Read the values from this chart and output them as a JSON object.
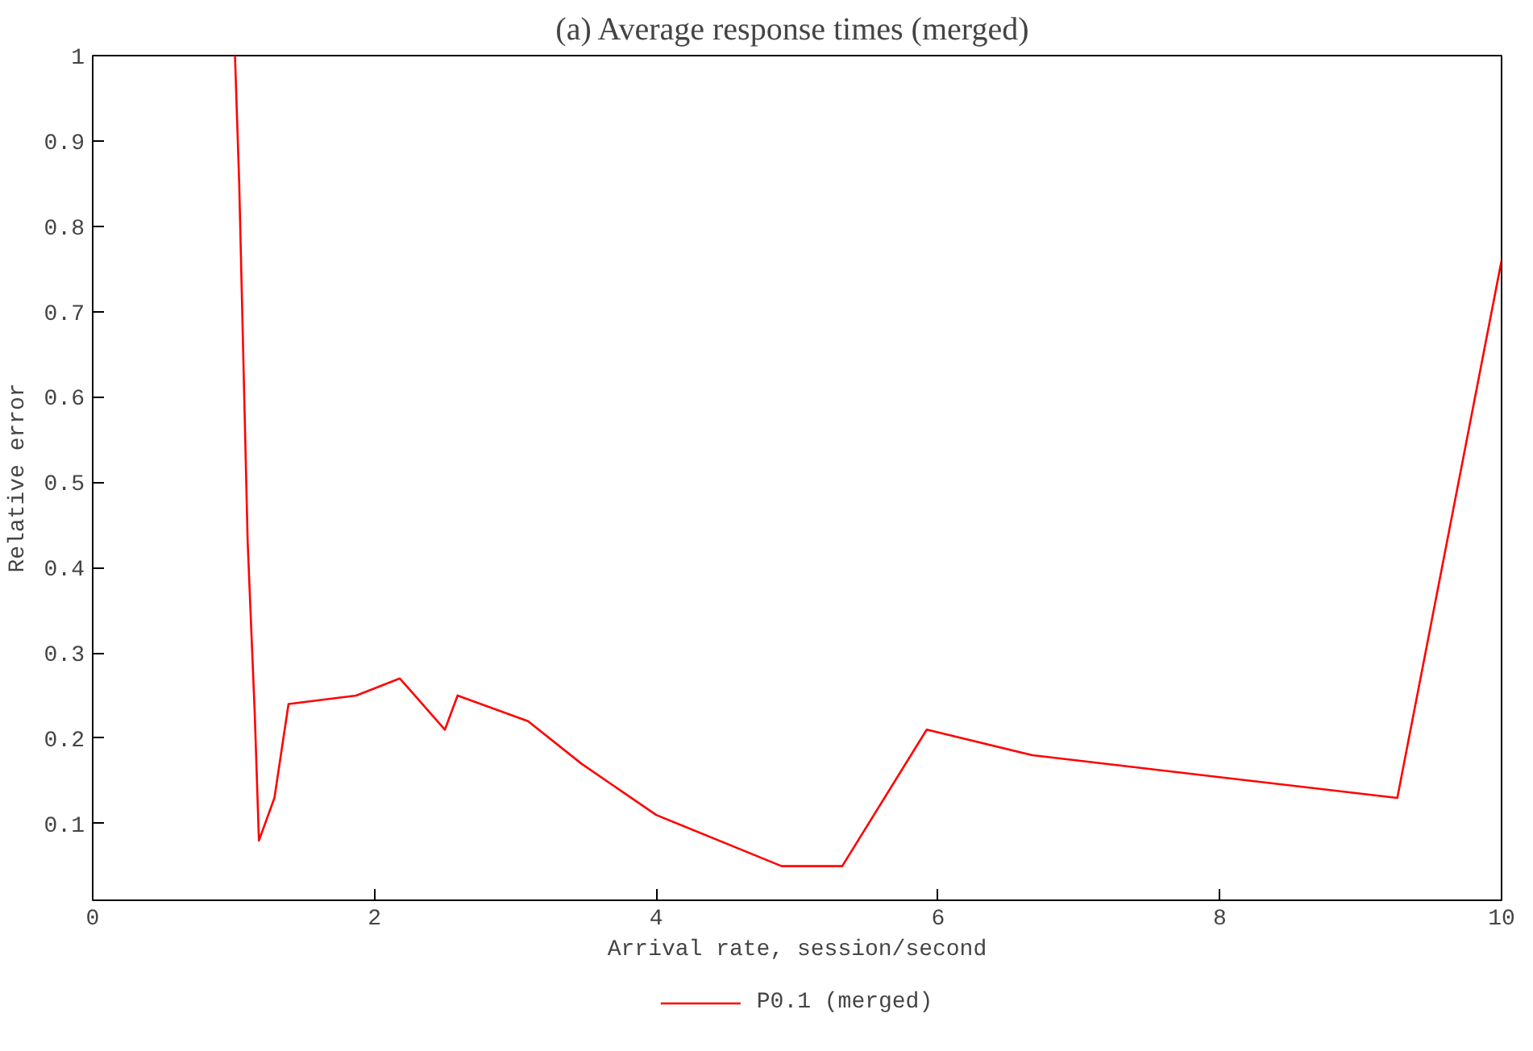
{
  "chart_data": {
    "type": "line",
    "title": "(a)  Average response times (merged)",
    "xlabel": "Arrival rate, session/second",
    "ylabel": "Relative error",
    "x": [
      1.01,
      1.04,
      1.07,
      1.1,
      1.15,
      1.18,
      1.29,
      1.39,
      1.87,
      2.18,
      2.5,
      2.59,
      3.09,
      3.47,
      4.0,
      4.89,
      5.32,
      5.92,
      6.67,
      9.26,
      10
    ],
    "series": [
      {
        "name": "P0.1 (merged)",
        "color": "#ff0000",
        "values": [
          1.0,
          0.85,
          0.64,
          0.43,
          0.23,
          0.08,
          0.13,
          0.24,
          0.25,
          0.27,
          0.21,
          0.25,
          0.22,
          0.17,
          0.11,
          0.05,
          0.05,
          0.21,
          0.18,
          0.13,
          0.76
        ]
      }
    ],
    "xlim": [
      0,
      10
    ],
    "ylim": [
      0.01,
      1
    ],
    "xticks": [
      0,
      2,
      4,
      6,
      8,
      10
    ],
    "yticks": [
      0.1,
      0.2,
      0.3,
      0.4,
      0.5,
      0.6,
      0.7,
      0.8,
      0.9,
      1
    ],
    "grid": false,
    "legend": "bottom",
    "marker": "none",
    "line_style": "solid"
  }
}
